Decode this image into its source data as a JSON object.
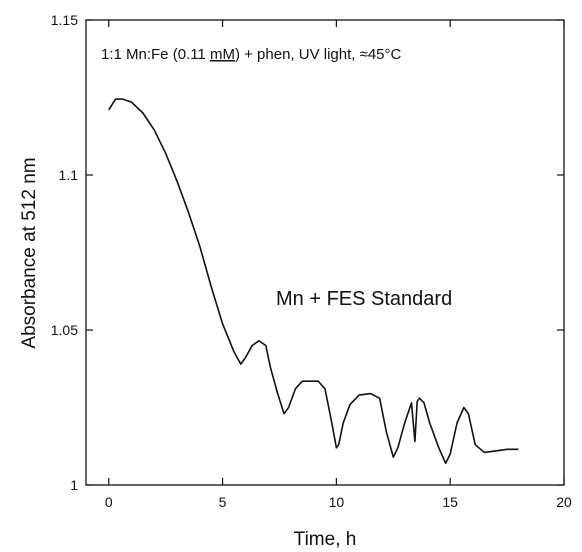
{
  "chart_data": {
    "type": "line",
    "title": "",
    "xlabel": "Time, h",
    "ylabel": "Absorbance at 512 nm",
    "xlim": [
      -1,
      20
    ],
    "ylim": [
      1,
      1.15
    ],
    "x_ticks": [
      0,
      5,
      10,
      15,
      20
    ],
    "x_tick_labels": [
      "0",
      "5",
      "10",
      "15",
      "20"
    ],
    "y_ticks": [
      1,
      1.05,
      1.1,
      1.15
    ],
    "y_tick_labels": [
      "1",
      "1.05",
      "1.1",
      "1.15"
    ],
    "grid": false,
    "annotations": [
      {
        "text_before": "1:1 Mn:Fe (0.11 ",
        "text_underlined": "mM",
        "text_after": ") + phen, UV light, ≈45°C"
      },
      {
        "text": "Mn + FES Standard"
      }
    ],
    "series": [
      {
        "x": [
          0,
          0.3,
          0.6,
          1.0,
          1.5,
          2.0,
          2.5,
          3.0,
          3.5,
          4.0,
          4.5,
          5.0,
          5.5,
          5.8,
          6.0,
          6.3,
          6.6,
          6.9,
          7.1,
          7.4,
          7.7,
          7.9,
          8.2,
          8.5,
          8.8,
          9.2,
          9.5,
          9.8,
          10.0,
          10.1,
          10.3,
          10.6,
          11.0,
          11.5,
          11.9,
          12.2,
          12.5,
          12.7,
          13.0,
          13.3,
          13.45,
          13.55,
          13.65,
          13.85,
          14.1,
          14.5,
          14.8,
          15.0,
          15.3,
          15.6,
          15.8,
          16.1,
          16.5,
          17.0,
          17.5,
          18.0
        ],
        "y": [
          1.121,
          1.1245,
          1.1245,
          1.1235,
          1.12,
          1.1145,
          1.107,
          1.098,
          1.088,
          1.077,
          1.064,
          1.052,
          1.043,
          1.039,
          1.041,
          1.045,
          1.0465,
          1.045,
          1.038,
          1.03,
          1.023,
          1.025,
          1.031,
          1.0335,
          1.0335,
          1.0335,
          1.031,
          1.02,
          1.012,
          1.013,
          1.02,
          1.026,
          1.029,
          1.0295,
          1.028,
          1.017,
          1.009,
          1.012,
          1.02,
          1.0265,
          1.014,
          1.027,
          1.028,
          1.0265,
          1.02,
          1.012,
          1.007,
          1.01,
          1.02,
          1.025,
          1.023,
          1.013,
          1.0105,
          1.011,
          1.0115,
          1.0115
        ]
      }
    ]
  }
}
